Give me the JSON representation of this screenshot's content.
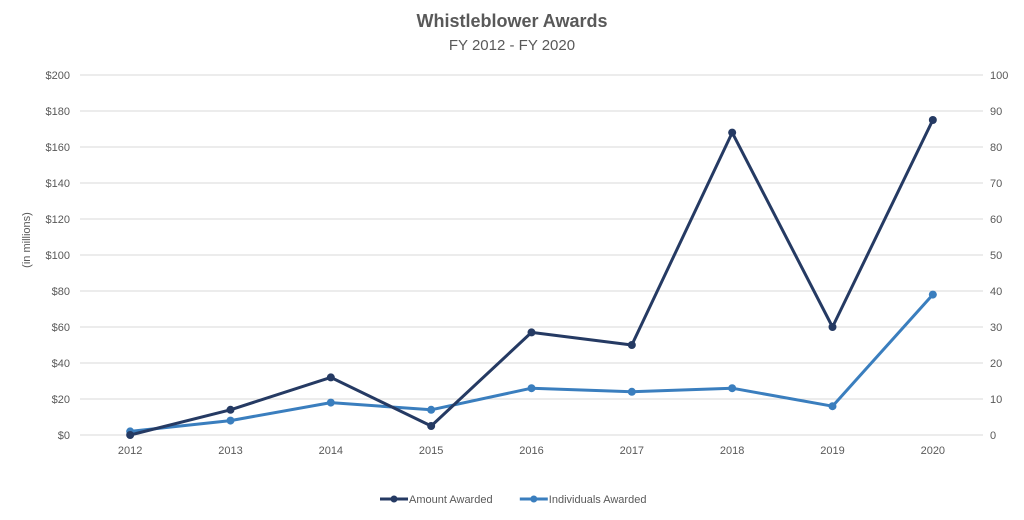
{
  "chart_data": {
    "type": "line",
    "title": "Whistleblower Awards",
    "subtitle": "FY 2012 - FY 2020",
    "ylabel": "(in millions)",
    "categories": [
      "2012",
      "2013",
      "2014",
      "2015",
      "2016",
      "2017",
      "2018",
      "2019",
      "2020"
    ],
    "y_left": {
      "min": 0,
      "max": 200,
      "step": 20,
      "tick_labels": [
        "$0",
        "$20",
        "$40",
        "$60",
        "$80",
        "$100",
        "$120",
        "$140",
        "$160",
        "$180",
        "$200"
      ]
    },
    "y_right": {
      "min": 0,
      "max": 100,
      "step": 10,
      "tick_labels": [
        "0",
        "10",
        "20",
        "30",
        "40",
        "50",
        "60",
        "70",
        "80",
        "90",
        "100"
      ]
    },
    "series": [
      {
        "name": "Amount Awarded",
        "axis": "left",
        "color": "#253a63",
        "values": [
          0,
          14,
          32,
          5,
          57,
          50,
          168,
          60,
          175
        ]
      },
      {
        "name": "Individuals Awarded",
        "axis": "right",
        "color": "#3a7ebe",
        "values": [
          1,
          4,
          9,
          7,
          13,
          12,
          13,
          8,
          39
        ]
      }
    ],
    "grid": true,
    "legend_position": "bottom"
  }
}
